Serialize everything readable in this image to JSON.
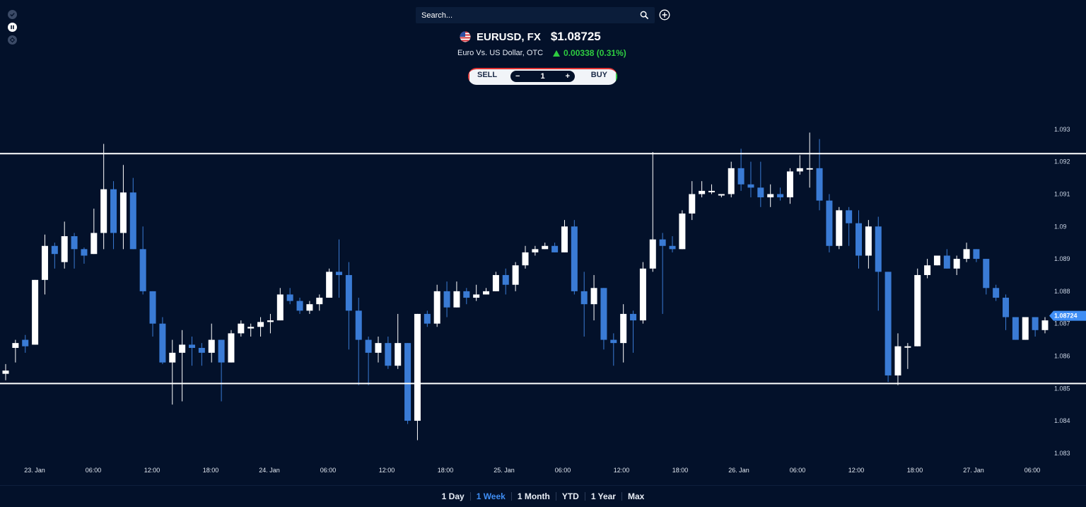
{
  "search": {
    "placeholder": "Search..."
  },
  "symbol": {
    "name": "EURUSD, FX",
    "price": "$1.08725",
    "description": "Euro Vs. US Dollar, OTC",
    "change": "0.00338 (0.31%)",
    "change_direction": "up",
    "flag": "us-flag-icon"
  },
  "trade": {
    "sell_label": "SELL",
    "buy_label": "BUY",
    "quantity": "1",
    "minus_label": "−",
    "plus_label": "+"
  },
  "ranges": [
    {
      "label": "1 Day",
      "active": false
    },
    {
      "label": "1 Week",
      "active": true
    },
    {
      "label": "1 Month",
      "active": false
    },
    {
      "label": "YTD",
      "active": false
    },
    {
      "label": "1 Year",
      "active": false
    },
    {
      "label": "Max",
      "active": false
    }
  ],
  "colors": {
    "background": "#03112a",
    "up": "#ffffff",
    "down": "#3a7bd5",
    "accent": "#3f8ef5",
    "change": "#2ecc40"
  },
  "chart_data": {
    "type": "candlestick",
    "x_tick_labels": [
      "23. Jan",
      "06:00",
      "12:00",
      "18:00",
      "24. Jan",
      "06:00",
      "12:00",
      "18:00",
      "25. Jan",
      "06:00",
      "12:00",
      "18:00",
      "26. Jan",
      "06:00",
      "12:00",
      "18:00",
      "27. Jan",
      "06:00"
    ],
    "y_tick_labels": [
      "1.093",
      "1.092",
      "1.091",
      "1.09",
      "1.089",
      "1.088",
      "1.087",
      "1.086",
      "1.085",
      "1.084",
      "1.083"
    ],
    "ylim": [
      1.0828,
      1.0935
    ],
    "current_price_label": "1.08724",
    "current_price": 1.08724,
    "horizontal_lines": [
      1.09225,
      1.08515
    ],
    "candles": [
      [
        1.08545,
        1.08555,
        1.08525,
        1.08575
      ],
      [
        1.08625,
        1.0864,
        1.0858,
        1.0865
      ],
      [
        1.0865,
        1.0863,
        1.0861,
        1.08665
      ],
      [
        1.08635,
        1.08835,
        1.08635,
        1.08835
      ],
      [
        1.08835,
        1.0894,
        1.0879,
        1.08975
      ],
      [
        1.0894,
        1.08915,
        1.0887,
        1.0895
      ],
      [
        1.0889,
        1.0897,
        1.0887,
        1.09015
      ],
      [
        1.0897,
        1.0893,
        1.0887,
        1.0898
      ],
      [
        1.0893,
        1.0891,
        1.08885,
        1.08935
      ],
      [
        1.08915,
        1.0898,
        1.08915,
        1.09055
      ],
      [
        1.0898,
        1.09115,
        1.0893,
        1.09255
      ],
      [
        1.09115,
        1.0898,
        1.0893,
        1.0914
      ],
      [
        1.0898,
        1.09105,
        1.0893,
        1.0919
      ],
      [
        1.09105,
        1.0893,
        1.0893,
        1.0915
      ],
      [
        1.0893,
        1.088,
        1.0879,
        1.09
      ],
      [
        1.088,
        1.087,
        1.0866,
        1.088
      ],
      [
        1.087,
        1.0858,
        1.08575,
        1.0872
      ],
      [
        1.0858,
        1.0861,
        1.0845,
        1.0865
      ],
      [
        1.0861,
        1.08635,
        1.0846,
        1.0868
      ],
      [
        1.08635,
        1.08625,
        1.0857,
        1.0866
      ],
      [
        1.08625,
        1.0861,
        1.0857,
        1.0864
      ],
      [
        1.0861,
        1.0865,
        1.0858,
        1.087
      ],
      [
        1.0865,
        1.0858,
        1.0846,
        1.0865
      ],
      [
        1.0858,
        1.0867,
        1.0858,
        1.0868
      ],
      [
        1.0867,
        1.087,
        1.0866,
        1.0871
      ],
      [
        1.08685,
        1.0869,
        1.0866,
        1.087
      ],
      [
        1.0869,
        1.08705,
        1.0866,
        1.0872
      ],
      [
        1.08705,
        1.0871,
        1.0867,
        1.0873
      ],
      [
        1.0871,
        1.0879,
        1.0871,
        1.0881
      ],
      [
        1.0879,
        1.0877,
        1.0876,
        1.0881
      ],
      [
        1.0877,
        1.0874,
        1.0873,
        1.0878
      ],
      [
        1.0874,
        1.0876,
        1.0873,
        1.0877
      ],
      [
        1.0876,
        1.0878,
        1.0874,
        1.0879
      ],
      [
        1.0878,
        1.0886,
        1.0878,
        1.0887
      ],
      [
        1.0886,
        1.0885,
        1.0878,
        1.0896
      ],
      [
        1.0885,
        1.0874,
        1.0862,
        1.0889
      ],
      [
        1.0874,
        1.0865,
        1.0851,
        1.0878
      ],
      [
        1.0865,
        1.0861,
        1.0851,
        1.0866
      ],
      [
        1.0861,
        1.0864,
        1.0858,
        1.0866
      ],
      [
        1.0864,
        1.0857,
        1.0856,
        1.0866
      ],
      [
        1.0857,
        1.0864,
        1.0856,
        1.0873
      ],
      [
        1.0864,
        1.084,
        1.0839,
        1.0864
      ],
      [
        1.084,
        1.0873,
        1.0834,
        1.0873
      ],
      [
        1.0873,
        1.087,
        1.0869,
        1.0874
      ],
      [
        1.087,
        1.088,
        1.0869,
        1.0882
      ],
      [
        1.088,
        1.0875,
        1.0872,
        1.0883
      ],
      [
        1.0875,
        1.088,
        1.0875,
        1.0883
      ],
      [
        1.088,
        1.0878,
        1.0876,
        1.0881
      ],
      [
        1.0878,
        1.0879,
        1.0877,
        1.0882
      ],
      [
        1.0879,
        1.088,
        1.0879,
        1.0881
      ],
      [
        1.088,
        1.0885,
        1.088,
        1.0886
      ],
      [
        1.0885,
        1.0882,
        1.0879,
        1.0887
      ],
      [
        1.0882,
        1.0888,
        1.088,
        1.0889
      ],
      [
        1.0888,
        1.0892,
        1.0887,
        1.0894
      ],
      [
        1.0892,
        1.0893,
        1.0891,
        1.0894
      ],
      [
        1.0893,
        1.0894,
        1.0893,
        1.0895
      ],
      [
        1.0894,
        1.0892,
        1.0892,
        1.0895
      ],
      [
        1.0892,
        1.09,
        1.0892,
        1.0902
      ],
      [
        1.09,
        1.088,
        1.0879,
        1.0902
      ],
      [
        1.088,
        1.0876,
        1.0866,
        1.0886
      ],
      [
        1.0876,
        1.0881,
        1.0871,
        1.0885
      ],
      [
        1.0881,
        1.0865,
        1.0862,
        1.0881
      ],
      [
        1.0865,
        1.0864,
        1.0857,
        1.0867
      ],
      [
        1.0864,
        1.0873,
        1.0858,
        1.0876
      ],
      [
        1.0873,
        1.0871,
        1.0861,
        1.0874
      ],
      [
        1.0871,
        1.0887,
        1.087,
        1.0889
      ],
      [
        1.0887,
        1.0896,
        1.0886,
        1.0923
      ],
      [
        1.0896,
        1.0894,
        1.0873,
        1.0898
      ],
      [
        1.0894,
        1.0893,
        1.0892,
        1.0897
      ],
      [
        1.0893,
        1.0904,
        1.0893,
        1.0905
      ],
      [
        1.0904,
        1.091,
        1.0902,
        1.0914
      ],
      [
        1.091,
        1.0911,
        1.0909,
        1.0914
      ],
      [
        1.0911,
        1.0911,
        1.091,
        1.0913
      ],
      [
        1.091,
        1.091,
        1.0909,
        1.091
      ],
      [
        1.091,
        1.0918,
        1.0909,
        1.092
      ],
      [
        1.0918,
        1.0913,
        1.0911,
        1.0924
      ],
      [
        1.0913,
        1.0912,
        1.0909,
        1.092
      ],
      [
        1.0912,
        1.0909,
        1.0906,
        1.092
      ],
      [
        1.0909,
        1.091,
        1.0906,
        1.0913
      ],
      [
        1.091,
        1.0909,
        1.0908,
        1.0912
      ],
      [
        1.0909,
        1.0917,
        1.0907,
        1.0918
      ],
      [
        1.0917,
        1.0918,
        1.0916,
        1.0922
      ],
      [
        1.0918,
        1.0918,
        1.0912,
        1.0929
      ],
      [
        1.0918,
        1.0908,
        1.0905,
        1.0927
      ],
      [
        1.0908,
        1.0894,
        1.0892,
        1.091
      ],
      [
        1.0894,
        1.0905,
        1.0893,
        1.0906
      ],
      [
        1.0905,
        1.0901,
        1.0894,
        1.0906
      ],
      [
        1.0901,
        1.0891,
        1.0887,
        1.0905
      ],
      [
        1.0891,
        1.09,
        1.0887,
        1.0902
      ],
      [
        1.09,
        1.0886,
        1.0874,
        1.0903
      ],
      [
        1.0886,
        1.0854,
        1.0852,
        1.0886
      ],
      [
        1.0854,
        1.0863,
        1.0851,
        1.0867
      ],
      [
        1.0863,
        1.0863,
        1.0856,
        1.0864
      ],
      [
        1.0863,
        1.0885,
        1.0863,
        1.0887
      ],
      [
        1.0885,
        1.0888,
        1.0884,
        1.089
      ],
      [
        1.0888,
        1.0891,
        1.0888,
        1.0891
      ],
      [
        1.0891,
        1.0887,
        1.0887,
        1.0893
      ],
      [
        1.0887,
        1.089,
        1.0885,
        1.0891
      ],
      [
        1.089,
        1.0893,
        1.0889,
        1.0895
      ],
      [
        1.0893,
        1.089,
        1.0889,
        1.0893
      ],
      [
        1.089,
        1.0881,
        1.0879,
        1.089
      ],
      [
        1.0881,
        1.0878,
        1.0877,
        1.0882
      ],
      [
        1.0878,
        1.0872,
        1.0868,
        1.0879
      ],
      [
        1.0872,
        1.0865,
        1.0865,
        1.0872
      ],
      [
        1.0865,
        1.0872,
        1.0865,
        1.0872
      ],
      [
        1.0872,
        1.0868,
        1.0866,
        1.0872
      ],
      [
        1.0868,
        1.0871,
        1.0867,
        1.0872
      ]
    ]
  }
}
